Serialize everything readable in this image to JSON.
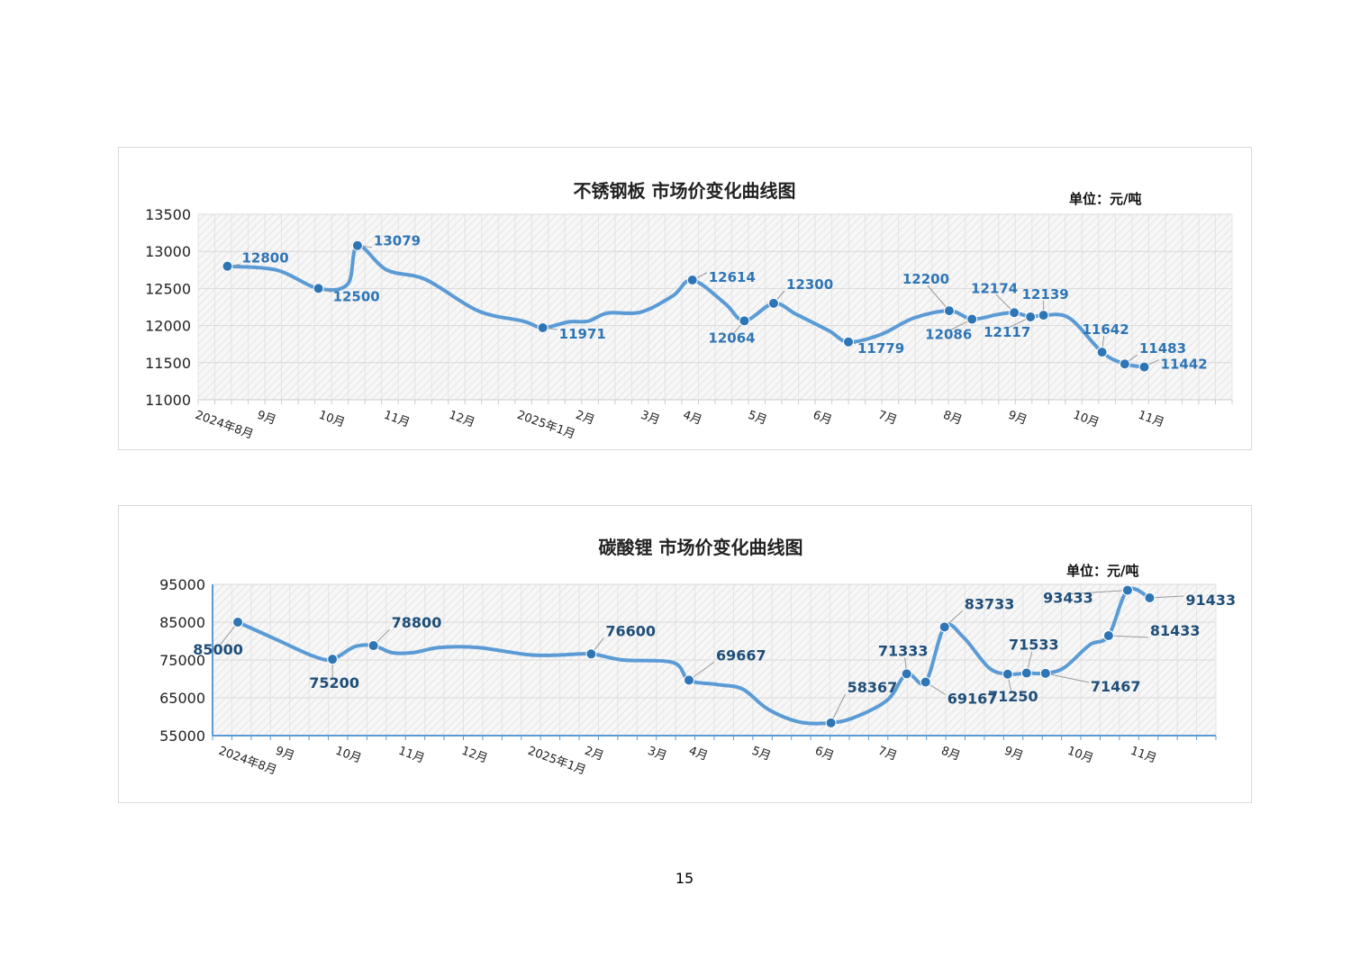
{
  "page_number": "15",
  "chart_data": [
    {
      "type": "line",
      "title": "不锈钢板 市场价变化曲线图",
      "unit_label": "单位：元/吨",
      "y_ticks": [
        "13500",
        "13000",
        "12500",
        "12000",
        "11500",
        "11000"
      ],
      "ylim": [
        11000,
        13500
      ],
      "line_color": "#5b9bd5",
      "marker_color": "#2e75b6",
      "label_color": "#2e75b6",
      "grid": true,
      "month_labels": [
        {
          "label": "2024年8月",
          "t": 0.0
        },
        {
          "label": "9月",
          "t": 0.95
        },
        {
          "label": "10月",
          "t": 1.9
        },
        {
          "label": "11月",
          "t": 2.9
        },
        {
          "label": "12月",
          "t": 3.9
        },
        {
          "label": "2025年1月",
          "t": 4.95
        },
        {
          "label": "2月",
          "t": 5.85
        },
        {
          "label": "3月",
          "t": 6.85
        },
        {
          "label": "4月",
          "t": 7.5
        },
        {
          "label": "5月",
          "t": 8.5
        },
        {
          "label": "6月",
          "t": 9.5
        },
        {
          "label": "7月",
          "t": 10.5
        },
        {
          "label": "8月",
          "t": 11.5
        },
        {
          "label": "9月",
          "t": 12.5
        },
        {
          "label": "10月",
          "t": 13.5
        },
        {
          "label": "11月",
          "t": 14.5
        }
      ],
      "curve": [
        {
          "t": 0.45,
          "y": 12800
        },
        {
          "t": 1.2,
          "y": 12750
        },
        {
          "t": 1.85,
          "y": 12500
        },
        {
          "t": 2.3,
          "y": 12560
        },
        {
          "t": 2.45,
          "y": 13079
        },
        {
          "t": 2.9,
          "y": 12750
        },
        {
          "t": 3.5,
          "y": 12620
        },
        {
          "t": 4.3,
          "y": 12200
        },
        {
          "t": 5.0,
          "y": 12060
        },
        {
          "t": 5.3,
          "y": 11971
        },
        {
          "t": 5.7,
          "y": 12050
        },
        {
          "t": 6.0,
          "y": 12060
        },
        {
          "t": 6.3,
          "y": 12170
        },
        {
          "t": 6.8,
          "y": 12180
        },
        {
          "t": 7.3,
          "y": 12400
        },
        {
          "t": 7.6,
          "y": 12614
        },
        {
          "t": 8.1,
          "y": 12300
        },
        {
          "t": 8.4,
          "y": 12064
        },
        {
          "t": 8.85,
          "y": 12300
        },
        {
          "t": 9.2,
          "y": 12150
        },
        {
          "t": 9.7,
          "y": 11930
        },
        {
          "t": 10.0,
          "y": 11779
        },
        {
          "t": 10.5,
          "y": 11880
        },
        {
          "t": 11.0,
          "y": 12100
        },
        {
          "t": 11.55,
          "y": 12200
        },
        {
          "t": 11.9,
          "y": 12086
        },
        {
          "t": 12.3,
          "y": 12150
        },
        {
          "t": 12.55,
          "y": 12174
        },
        {
          "t": 12.8,
          "y": 12117
        },
        {
          "t": 13.0,
          "y": 12139
        },
        {
          "t": 13.4,
          "y": 12100
        },
        {
          "t": 13.9,
          "y": 11642
        },
        {
          "t": 14.25,
          "y": 11483
        },
        {
          "t": 14.55,
          "y": 11442
        }
      ],
      "points": [
        {
          "t": 0.45,
          "value": 12800,
          "label": "12800",
          "dx": 16,
          "dy": -4
        },
        {
          "t": 1.85,
          "value": 12500,
          "label": "12500",
          "dx": 16,
          "dy": 14
        },
        {
          "t": 2.45,
          "value": 13079,
          "label": "13079",
          "dx": 18,
          "dy": 0
        },
        {
          "t": 5.3,
          "value": 11971,
          "label": "11971",
          "dx": 18,
          "dy": 12
        },
        {
          "t": 7.6,
          "value": 12614,
          "label": "12614",
          "dx": 18,
          "dy": 2
        },
        {
          "t": 8.4,
          "value": 12064,
          "label": "12064",
          "dx": -14,
          "dy": 24
        },
        {
          "t": 8.85,
          "value": 12300,
          "label": "12300",
          "dx": 14,
          "dy": -16
        },
        {
          "t": 10.0,
          "value": 11779,
          "label": "11779",
          "dx": 10,
          "dy": 12
        },
        {
          "t": 11.55,
          "value": 12200,
          "label": "12200",
          "dx": -26,
          "dy": -30
        },
        {
          "t": 11.9,
          "value": 12086,
          "label": "12086",
          "dx": -26,
          "dy": 22
        },
        {
          "t": 12.55,
          "value": 12174,
          "label": "12174",
          "dx": -22,
          "dy": -22
        },
        {
          "t": 12.8,
          "value": 12117,
          "label": "12117",
          "dx": -26,
          "dy": 22
        },
        {
          "t": 13.0,
          "value": 12139,
          "label": "12139",
          "dx": 2,
          "dy": -18
        },
        {
          "t": 13.9,
          "value": 11642,
          "label": "11642",
          "dx": 4,
          "dy": -20
        },
        {
          "t": 14.25,
          "value": 11483,
          "label": "11483",
          "dx": 16,
          "dy": -12
        },
        {
          "t": 14.55,
          "value": 11442,
          "label": "11442",
          "dx": 18,
          "dy": 2
        }
      ]
    },
    {
      "type": "line",
      "title": "碳酸锂 市场价变化曲线图",
      "unit_label": "单位：元/吨",
      "y_ticks": [
        "95000",
        "85000",
        "75000",
        "65000",
        "55000"
      ],
      "ylim": [
        55000,
        95000
      ],
      "line_color": "#5b9bd5",
      "marker_color": "#2e75b6",
      "label_color": "#1f4e79",
      "grid": true,
      "month_labels": [
        {
          "label": "2024年8月",
          "t": 0.0
        },
        {
          "label": "9月",
          "t": 0.9
        },
        {
          "label": "10月",
          "t": 1.85
        },
        {
          "label": "11月",
          "t": 2.85
        },
        {
          "label": "12月",
          "t": 3.85
        },
        {
          "label": "2025年1月",
          "t": 4.9
        },
        {
          "label": "2月",
          "t": 5.8
        },
        {
          "label": "3月",
          "t": 6.8
        },
        {
          "label": "4月",
          "t": 7.45
        },
        {
          "label": "5月",
          "t": 8.45
        },
        {
          "label": "6月",
          "t": 9.45
        },
        {
          "label": "7月",
          "t": 10.45
        },
        {
          "label": "8月",
          "t": 11.45
        },
        {
          "label": "9月",
          "t": 12.45
        },
        {
          "label": "10月",
          "t": 13.45
        },
        {
          "label": "11月",
          "t": 14.45
        }
      ],
      "curve": [
        {
          "t": 0.4,
          "y": 85000
        },
        {
          "t": 1.0,
          "y": 80500
        },
        {
          "t": 1.6,
          "y": 76000
        },
        {
          "t": 1.9,
          "y": 75200
        },
        {
          "t": 2.25,
          "y": 78500
        },
        {
          "t": 2.55,
          "y": 78800
        },
        {
          "t": 2.85,
          "y": 76900
        },
        {
          "t": 3.2,
          "y": 77000
        },
        {
          "t": 3.6,
          "y": 78300
        },
        {
          "t": 4.2,
          "y": 78300
        },
        {
          "t": 5.0,
          "y": 76400
        },
        {
          "t": 5.5,
          "y": 76300
        },
        {
          "t": 6.0,
          "y": 76600
        },
        {
          "t": 6.5,
          "y": 75000
        },
        {
          "t": 7.3,
          "y": 74300
        },
        {
          "t": 7.55,
          "y": 69667
        },
        {
          "t": 8.0,
          "y": 68500
        },
        {
          "t": 8.4,
          "y": 67300
        },
        {
          "t": 8.8,
          "y": 62000
        },
        {
          "t": 9.3,
          "y": 58600
        },
        {
          "t": 9.8,
          "y": 58367
        },
        {
          "t": 10.2,
          "y": 60000
        },
        {
          "t": 10.7,
          "y": 64500
        },
        {
          "t": 11.0,
          "y": 71333
        },
        {
          "t": 11.3,
          "y": 69167
        },
        {
          "t": 11.6,
          "y": 83733
        },
        {
          "t": 11.9,
          "y": 81000
        },
        {
          "t": 12.3,
          "y": 73000
        },
        {
          "t": 12.6,
          "y": 71250
        },
        {
          "t": 12.9,
          "y": 71533
        },
        {
          "t": 13.2,
          "y": 71467
        },
        {
          "t": 13.5,
          "y": 73000
        },
        {
          "t": 13.9,
          "y": 79000
        },
        {
          "t": 14.2,
          "y": 81433
        },
        {
          "t": 14.5,
          "y": 93433
        },
        {
          "t": 14.85,
          "y": 91433
        }
      ],
      "points": [
        {
          "t": 0.4,
          "value": 85000,
          "label": "85000",
          "dx": -22,
          "dy": 36
        },
        {
          "t": 1.9,
          "value": 75200,
          "label": "75200",
          "dx": 2,
          "dy": 32
        },
        {
          "t": 2.55,
          "value": 78800,
          "label": "78800",
          "dx": 20,
          "dy": -20
        },
        {
          "t": 6.0,
          "value": 76600,
          "label": "76600",
          "dx": 16,
          "dy": -20
        },
        {
          "t": 7.55,
          "value": 69667,
          "label": "69667",
          "dx": 30,
          "dy": -22
        },
        {
          "t": 9.8,
          "value": 58367,
          "label": "58367",
          "dx": 18,
          "dy": -34
        },
        {
          "t": 11.0,
          "value": 71333,
          "label": "71333",
          "dx": -4,
          "dy": -20
        },
        {
          "t": 11.3,
          "value": 69167,
          "label": "69167",
          "dx": 24,
          "dy": 24
        },
        {
          "t": 11.6,
          "value": 83733,
          "label": "83733",
          "dx": 22,
          "dy": -20
        },
        {
          "t": 12.6,
          "value": 71250,
          "label": "71250",
          "dx": 6,
          "dy": 30
        },
        {
          "t": 12.9,
          "value": 71533,
          "label": "71533",
          "dx": 8,
          "dy": -26
        },
        {
          "t": 13.2,
          "value": 71467,
          "label": "71467",
          "dx": 50,
          "dy": 20
        },
        {
          "t": 14.2,
          "value": 81433,
          "label": "81433",
          "dx": 46,
          "dy": 0
        },
        {
          "t": 14.5,
          "value": 93433,
          "label": "93433",
          "dx": -66,
          "dy": 14
        },
        {
          "t": 14.85,
          "value": 91433,
          "label": "91433",
          "dx": 40,
          "dy": 8
        }
      ]
    }
  ]
}
